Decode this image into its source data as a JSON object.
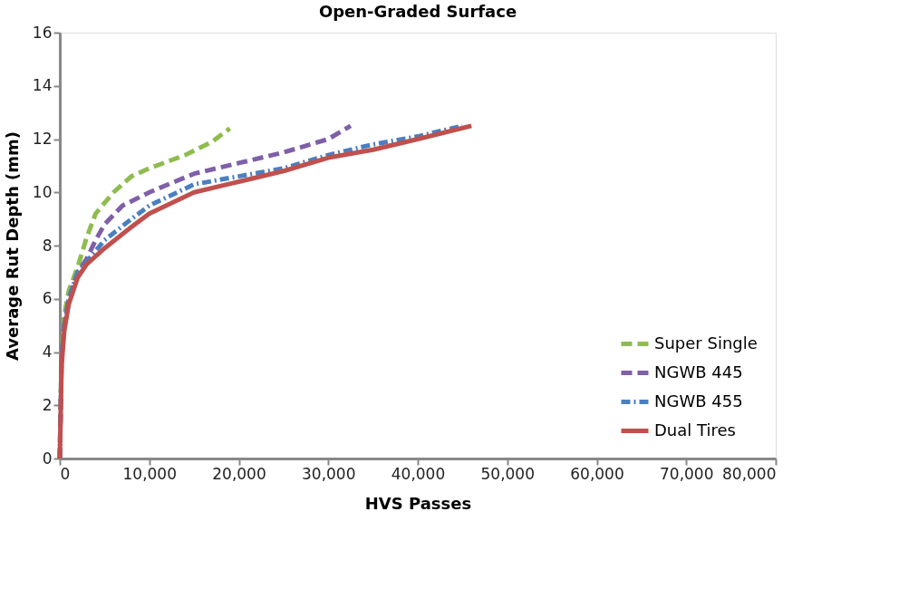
{
  "chart_data": {
    "type": "line",
    "title": "Open-Graded Surface",
    "xlabel": "HVS Passes",
    "ylabel": "Average Rut Depth (mm)",
    "xlim": [
      0,
      80000
    ],
    "xticks": [
      {
        "value": 0,
        "label": "0"
      },
      {
        "value": 10000,
        "label": "10,000"
      },
      {
        "value": 20000,
        "label": "20,000"
      },
      {
        "value": 30000,
        "label": "30,000"
      },
      {
        "value": 40000,
        "label": "40,000"
      },
      {
        "value": 50000,
        "label": "50,000"
      },
      {
        "value": 60000,
        "label": "60,000"
      },
      {
        "value": 70000,
        "label": "70,000"
      },
      {
        "value": 80000,
        "label": "80,000"
      }
    ],
    "ylim": [
      0,
      16
    ],
    "yticks": [
      0,
      2,
      4,
      6,
      8,
      10,
      12,
      14,
      16
    ],
    "grid": false,
    "legend": "bottom right",
    "marker": "none",
    "series": [
      {
        "name": "Super Single",
        "color": "#8fbc4f",
        "line_style": "dashed",
        "x": [
          0,
          200,
          500,
          1000,
          2000,
          3000,
          4000,
          6000,
          8000,
          10000,
          14000,
          17000,
          19000
        ],
        "values": [
          0,
          4.0,
          5.4,
          6.3,
          7.2,
          8.3,
          9.2,
          10.0,
          10.6,
          10.9,
          11.4,
          11.9,
          12.4
        ]
      },
      {
        "name": "NGWB 445",
        "color": "#7f5fa8",
        "line_style": "dashed",
        "x": [
          0,
          200,
          500,
          1000,
          2000,
          3000,
          4000,
          5000,
          7000,
          10000,
          15000,
          20000,
          25000,
          30000,
          32500
        ],
        "values": [
          0,
          3.8,
          5.0,
          6.0,
          7.0,
          7.5,
          8.2,
          8.8,
          9.5,
          10.0,
          10.7,
          11.1,
          11.5,
          12.0,
          12.5
        ]
      },
      {
        "name": "NGWB 455",
        "color": "#4a7fc1",
        "line_style": "dotted",
        "x": [
          0,
          200,
          500,
          1000,
          2000,
          3000,
          5000,
          8000,
          10000,
          15000,
          20000,
          25000,
          30000,
          35000,
          40000,
          45000
        ],
        "values": [
          0,
          3.8,
          5.0,
          6.0,
          7.0,
          7.4,
          8.2,
          9.0,
          9.5,
          10.3,
          10.6,
          10.9,
          11.4,
          11.8,
          12.1,
          12.5
        ]
      },
      {
        "name": "Dual Tires",
        "color": "#c0504d",
        "line_style": "solid",
        "x": [
          0,
          200,
          500,
          1000,
          2000,
          3000,
          5000,
          8000,
          10000,
          15000,
          20000,
          25000,
          30000,
          35000,
          40000,
          46000
        ],
        "values": [
          0,
          3.5,
          4.8,
          5.8,
          6.8,
          7.3,
          7.9,
          8.7,
          9.2,
          10.0,
          10.4,
          10.8,
          11.3,
          11.6,
          12.0,
          12.5
        ]
      }
    ]
  }
}
